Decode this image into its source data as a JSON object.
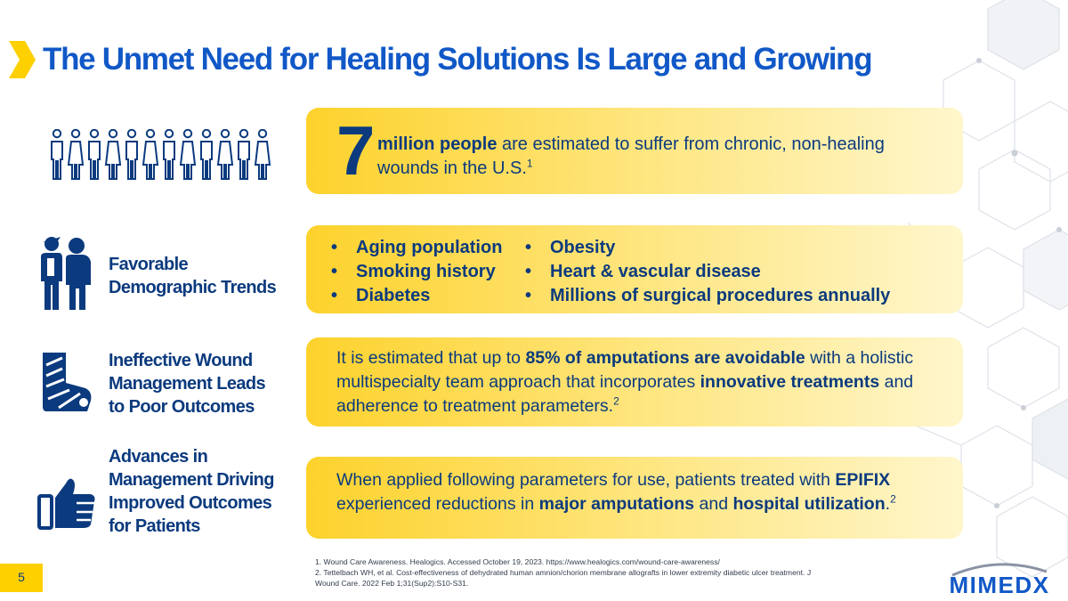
{
  "title": "The Unmet Need for Healing Solutions Is Large and Growing",
  "stat": {
    "number": "7",
    "bold": "million people",
    "text": " are estimated to suffer from chronic, non-healing wounds in the U.S.",
    "sup": "1"
  },
  "trends": {
    "label_line1": "Favorable",
    "label_line2": "Demographic Trends",
    "col1": [
      "Aging population",
      "Smoking history",
      "Diabetes"
    ],
    "col2": [
      "Obesity",
      "Heart & vascular disease",
      "Millions of surgical procedures annually"
    ]
  },
  "wound": {
    "label_line1": "Ineffective Wound",
    "label_line2": "Management Leads",
    "label_line3": "to Poor Outcomes",
    "t1": "It is estimated that up to ",
    "b1": "85% of amputations are avoidable",
    "t2": " with a holistic multispecialty team approach that incorporates ",
    "b2": "innovative treatments",
    "t3": " and adherence to treatment parameters.",
    "sup": "2"
  },
  "advances": {
    "label_line1": "Advances in",
    "label_line2": "Management Driving",
    "label_line3": "Improved Outcomes",
    "label_line4": "for Patients",
    "t1": "When applied following parameters for use, patients treated with ",
    "b1": "EPIFIX",
    "t2": " experienced reductions in ",
    "b2": "major amputations",
    "t3": " and ",
    "b3": "hospital utilization",
    "t4": ".",
    "sup": "2"
  },
  "footnotes": [
    "1. Wound Care Awareness. Healogics. Accessed October 19, 2023. https://www.healogics.com/wound-care-awareness/",
    "2. Tettelbach WH, et al. Cost-effectiveness of dehydrated human amnion/chorion membrane allografts in lower extremity diabetic ulcer treatment. J Wound Care. 2022 Feb 1;31(Sup2):S10-S31."
  ],
  "page_number": "5",
  "logo": "MIMEDX",
  "colors": {
    "title_blue": "#1158c7",
    "navy": "#0b3a7e",
    "gold": "#fed000"
  },
  "icons": [
    "chevron-icon",
    "people-group-icon",
    "family-icon",
    "leg-cast-icon",
    "thumbs-up-icon"
  ]
}
